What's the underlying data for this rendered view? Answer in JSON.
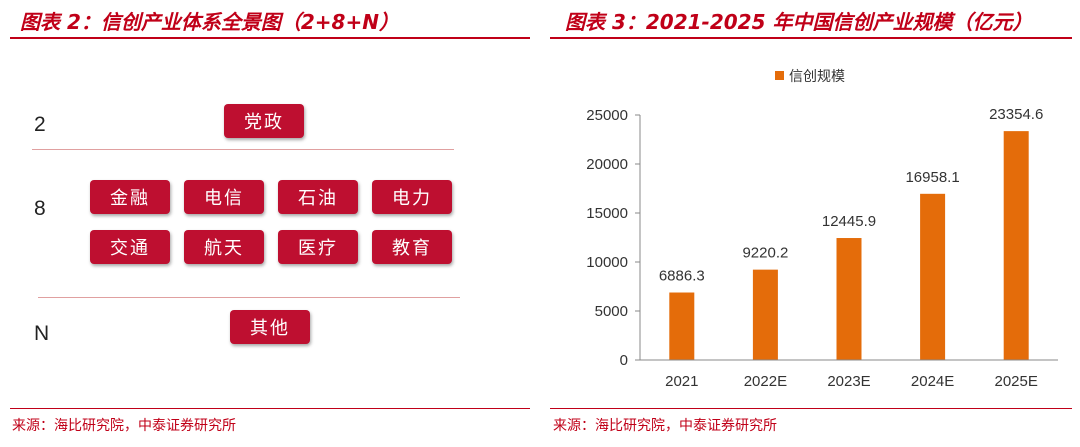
{
  "left": {
    "title": "图表 2：信创产业体系全景图（2+8+N）",
    "source": "来源：海比研究院，中泰证券研究所",
    "rows": [
      {
        "label": "2",
        "items": [
          "党政"
        ]
      },
      {
        "label": "8",
        "items": [
          "金融",
          "电信",
          "石油",
          "电力",
          "交通",
          "航天",
          "医疗",
          "教育"
        ]
      },
      {
        "label": "N",
        "items": [
          "其他"
        ]
      }
    ]
  },
  "right": {
    "title": "图表 3：2021-2025 年中国信创产业规模（亿元）",
    "source": "来源：海比研究院，中泰证券研究所"
  },
  "chart_data": {
    "type": "bar",
    "title": "",
    "categories": [
      "2021",
      "2022E",
      "2023E",
      "2024E",
      "2025E"
    ],
    "series": [
      {
        "name": "信创规模",
        "values": [
          6886.3,
          9220.2,
          12445.9,
          16958.1,
          23354.6
        ],
        "color": "#e46c0a"
      }
    ],
    "data_labels": [
      "6886.3",
      "9220.2",
      "12445.9",
      "16958.1",
      "23354.6"
    ],
    "y_ticks": [
      0,
      5000,
      10000,
      15000,
      20000,
      25000
    ],
    "ylim": [
      0,
      25000
    ],
    "legend_position": "top-center",
    "grid": false
  }
}
